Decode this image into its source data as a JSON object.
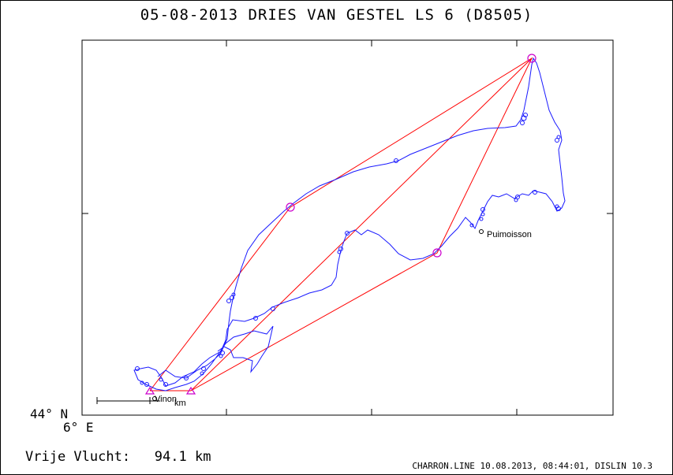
{
  "header": {
    "title": "05-08-2013   DRIES VAN GESTEL   LS 6 (D8505)"
  },
  "map": {
    "lat_label": "44° N",
    "lon_label": "6° E",
    "towns": [
      {
        "name": "Puimoisson"
      },
      {
        "name": "Vinon"
      }
    ],
    "scale_label": "km",
    "colors": {
      "track": "#1a1aff",
      "task": "#ff0000",
      "turnpoint": "#cc00cc",
      "frame": "#000000"
    }
  },
  "footer": {
    "distance_label": "Vrije Vlucht:",
    "distance_value": "94.1 km",
    "program_info": "CHARRON.LINE 10.08.2013, 08:44:01, DISLIN 10.3"
  }
}
